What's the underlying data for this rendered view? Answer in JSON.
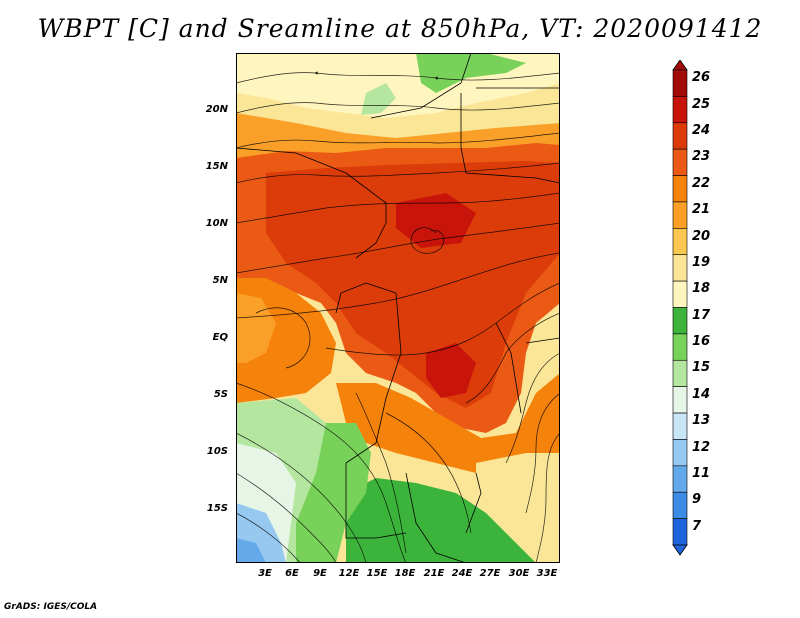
{
  "title": "WBPT [C] and Sreamline at 850hPa, VT: 2020091412",
  "credit": "GrADS: IGES/COLA",
  "map": {
    "lat_labels": [
      "20N",
      "15N",
      "10N",
      "5N",
      "EQ",
      "5S",
      "10S",
      "15S"
    ],
    "lon_labels": [
      "3E",
      "6E",
      "9E",
      "12E",
      "15E",
      "18E",
      "21E",
      "24E",
      "27E",
      "30E",
      "33E"
    ]
  },
  "colorbar": {
    "labels": [
      "26",
      "25",
      "24",
      "23",
      "22",
      "21",
      "20",
      "19",
      "18",
      "17",
      "16",
      "15",
      "14",
      "13",
      "12",
      "11",
      "9",
      "7"
    ],
    "colors": [
      "#a50a0a",
      "#c8140a",
      "#dc3c0a",
      "#eb5a14",
      "#f5820a",
      "#faa028",
      "#fac850",
      "#fae696",
      "#fff5be",
      "#3cb43c",
      "#78d25a",
      "#b4e6a0",
      "#e6f5e6",
      "#c8e6f5",
      "#96c8f0",
      "#64aaeb",
      "#3c8ce6",
      "#1e64dc"
    ]
  },
  "palette": {
    "red_dark": "#c8140a",
    "red": "#dc3c0a",
    "orange_red": "#eb5a14",
    "orange": "#f5820a",
    "light_orange": "#faa028",
    "yellow_orange": "#fac850",
    "pale_yellow": "#fae696",
    "cream": "#fff5be",
    "green": "#3cb43c",
    "light_green": "#78d25a",
    "pale_green": "#b4e6a0",
    "pale_cyan": "#e6f5e6",
    "light_blue": "#96c8f0",
    "blue": "#64aaeb"
  }
}
